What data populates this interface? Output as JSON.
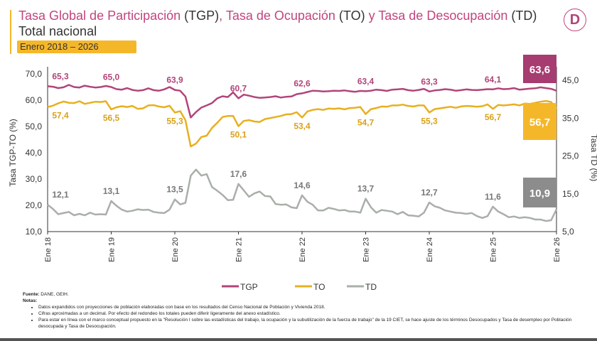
{
  "header": {
    "title_parts": [
      "Tasa Global de Participación",
      " (TGP)",
      ", Tasa de Ocupación",
      " (TO)",
      " y Tasa de Desocupación",
      " (TD)"
    ],
    "subtitle": "Total nacional",
    "period": "Enero 2018 – 2026",
    "logo": "D"
  },
  "chart_data": {
    "type": "line",
    "ylabel": "Tasa TGP-TO (%)",
    "y2label": "Tasa TD (%)",
    "ylim": [
      10,
      70
    ],
    "y2lim": [
      5,
      45
    ],
    "yticks": [
      "70,0",
      "60,0",
      "50,0",
      "40,0",
      "30,0",
      "20,0",
      "10,0"
    ],
    "y2ticks": [
      "45,0",
      "35,0",
      "25,0",
      "15,0",
      "5,0"
    ],
    "xticks": [
      "Ene 18",
      "Ene 19",
      "Ene 20",
      "Ene 21",
      "Ene 22",
      "Ene 23",
      "Ene 24",
      "Ene 25",
      "Ene 26"
    ],
    "x_start": "2018-01",
    "x_end": "2026-01",
    "frequency": "monthly",
    "grid": false,
    "legend": "bottom",
    "series": [
      {
        "name": "TGP",
        "axis": "left",
        "color": "#b1457a",
        "labels": [
          "65,3",
          "65,0",
          "63,9",
          "60,7",
          "62,6",
          "63,4",
          "63,3",
          "64,1"
        ],
        "last_label": "63,6",
        "values": [
          65.3,
          65.1,
          64.6,
          64.9,
          65.8,
          65.0,
          64.8,
          65.5,
          65.1,
          64.8,
          65.0,
          65.4,
          65.0,
          64.2,
          64.0,
          64.6,
          63.9,
          63.6,
          63.8,
          64.5,
          63.8,
          63.6,
          64.1,
          65.0,
          63.9,
          63.6,
          61.4,
          53.4,
          55.5,
          57.2,
          58.0,
          58.9,
          60.7,
          61.5,
          61.2,
          63.0,
          60.7,
          62.1,
          61.7,
          61.2,
          60.9,
          61.0,
          61.2,
          61.5,
          61.0,
          61.3,
          61.4,
          62.3,
          62.6,
          63.1,
          63.6,
          63.5,
          63.3,
          63.4,
          63.6,
          63.5,
          63.7,
          63.4,
          63.2,
          63.5,
          63.4,
          63.6,
          64.0,
          63.8,
          63.5,
          64.0,
          64.1,
          64.3,
          63.8,
          63.6,
          63.9,
          64.3,
          63.3,
          63.7,
          63.9,
          64.2,
          64.0,
          63.6,
          63.8,
          64.1,
          63.9,
          63.8,
          64.0,
          64.2,
          64.1,
          64.5,
          64.2,
          64.3,
          64.6,
          64.0,
          64.2,
          64.4,
          64.5,
          64.9,
          64.6,
          64.3,
          63.6
        ]
      },
      {
        "name": "TO",
        "axis": "left",
        "color": "#e8b020",
        "labels": [
          "57,4",
          "56,5",
          "55,3",
          "50,1",
          "53,4",
          "54,7",
          "55,3",
          "56,7"
        ],
        "last_label": "56,7",
        "values": [
          57.4,
          57.9,
          58.8,
          59.5,
          59.0,
          58.9,
          59.6,
          58.6,
          59.0,
          59.4,
          59.3,
          59.6,
          56.5,
          57.3,
          57.7,
          57.4,
          57.8,
          56.7,
          56.9,
          58.0,
          58.1,
          57.6,
          57.3,
          57.9,
          55.3,
          55.8,
          52.4,
          42.4,
          43.5,
          46.0,
          46.5,
          49.4,
          51.4,
          53.6,
          54.0,
          54.0,
          50.1,
          52.1,
          52.4,
          51.9,
          51.7,
          52.8,
          53.2,
          53.6,
          54.0,
          54.6,
          54.7,
          55.4,
          53.4,
          55.7,
          56.3,
          56.6,
          56.3,
          56.8,
          56.7,
          56.9,
          56.5,
          57.0,
          57.1,
          57.4,
          54.7,
          56.6,
          57.0,
          57.6,
          57.5,
          58.0,
          58.0,
          58.3,
          57.8,
          57.6,
          58.0,
          58.0,
          55.3,
          56.6,
          56.9,
          57.2,
          57.5,
          57.1,
          57.6,
          57.8,
          57.7,
          57.5,
          57.7,
          58.4,
          56.7,
          58.2,
          58.0,
          58.2,
          58.4,
          58.0,
          58.7,
          58.6,
          59.0,
          59.4,
          59.7,
          59.3,
          56.7
        ]
      },
      {
        "name": "TD",
        "axis": "right",
        "color": "#a9afa9",
        "labels": [
          "12,1",
          "13,1",
          "13,5",
          "17,6",
          "14,6",
          "13,7",
          "12,7",
          "11,6"
        ],
        "last_label": "10,9",
        "values": [
          12.1,
          11.0,
          9.6,
          9.9,
          10.2,
          9.3,
          9.7,
          9.3,
          10.0,
          9.5,
          9.6,
          9.5,
          13.1,
          11.8,
          10.8,
          10.3,
          10.5,
          10.9,
          10.7,
          10.8,
          10.2,
          10.0,
          9.9,
          10.8,
          13.5,
          12.2,
          12.6,
          19.8,
          21.4,
          19.8,
          20.2,
          16.8,
          15.8,
          14.7,
          13.3,
          13.4,
          17.6,
          15.9,
          14.2,
          15.1,
          15.6,
          14.4,
          14.3,
          12.3,
          12.1,
          12.2,
          11.4,
          11.2,
          14.6,
          12.9,
          12.1,
          10.6,
          10.6,
          11.3,
          11.0,
          10.6,
          10.7,
          10.3,
          10.3,
          10.0,
          13.7,
          11.4,
          10.0,
          10.7,
          10.5,
          10.3,
          9.6,
          10.2,
          9.3,
          9.2,
          9.0,
          10.0,
          12.7,
          11.7,
          11.3,
          10.6,
          10.3,
          10.0,
          9.9,
          9.7,
          9.9,
          9.1,
          8.6,
          9.1,
          11.6,
          10.3,
          9.6,
          8.8,
          9.0,
          8.6,
          8.8,
          8.6,
          8.2,
          8.2,
          7.8,
          8.0,
          10.9
        ]
      }
    ]
  },
  "footer": {
    "source_label": "Fuente:",
    "source": " DANE, GEIH.",
    "notes_label": "Notas:",
    "notes": [
      "Datos expandidos con proyecciones de población elaboradas con base en los resultados del Censo Nacional de Población y Vivienda 2018.",
      "Cifras aproximadas a un decimal. Por efecto del redondeo los totales pueden diferir ligeramente del anexo estadístico.",
      "Para estar en línea con el marco conceptual propuesto en la \"Resolución I sobre las estadísticas del trabajo, la ocupación y la subutilización de la fuerza de trabajo\" de la 19 CIET, se hace ajuste de los términos Desocupados y Tasa de desempleo por Población desocupada y Tasa de Desocupación."
    ]
  }
}
